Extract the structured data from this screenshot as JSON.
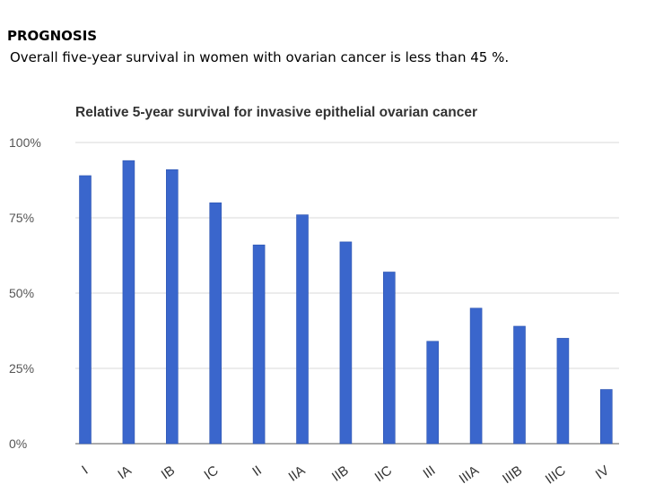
{
  "slide": {
    "heading": "PROGNOSIS",
    "subheading": "Overall five-year survival in women with ovarian cancer is less than 45 %."
  },
  "chart_data": {
    "type": "bar",
    "title": "Relative 5-year survival for invasive epithelial ovarian cancer",
    "xlabel": "",
    "ylabel": "",
    "categories": [
      "I",
      "IA",
      "IB",
      "IC",
      "II",
      "IIA",
      "IIB",
      "IIC",
      "III",
      "IIIA",
      "IIIB",
      "IIIC",
      "IV"
    ],
    "values": [
      89,
      94,
      91,
      80,
      66,
      76,
      67,
      57,
      34,
      45,
      39,
      35,
      18
    ],
    "ylim": [
      0,
      100
    ],
    "yticks": [
      0,
      25,
      50,
      75,
      100
    ],
    "ytick_labels": [
      "0%",
      "25%",
      "50%",
      "75%",
      "100%"
    ],
    "grid": true,
    "legend": "none",
    "bar_color": "#3a66cc"
  }
}
